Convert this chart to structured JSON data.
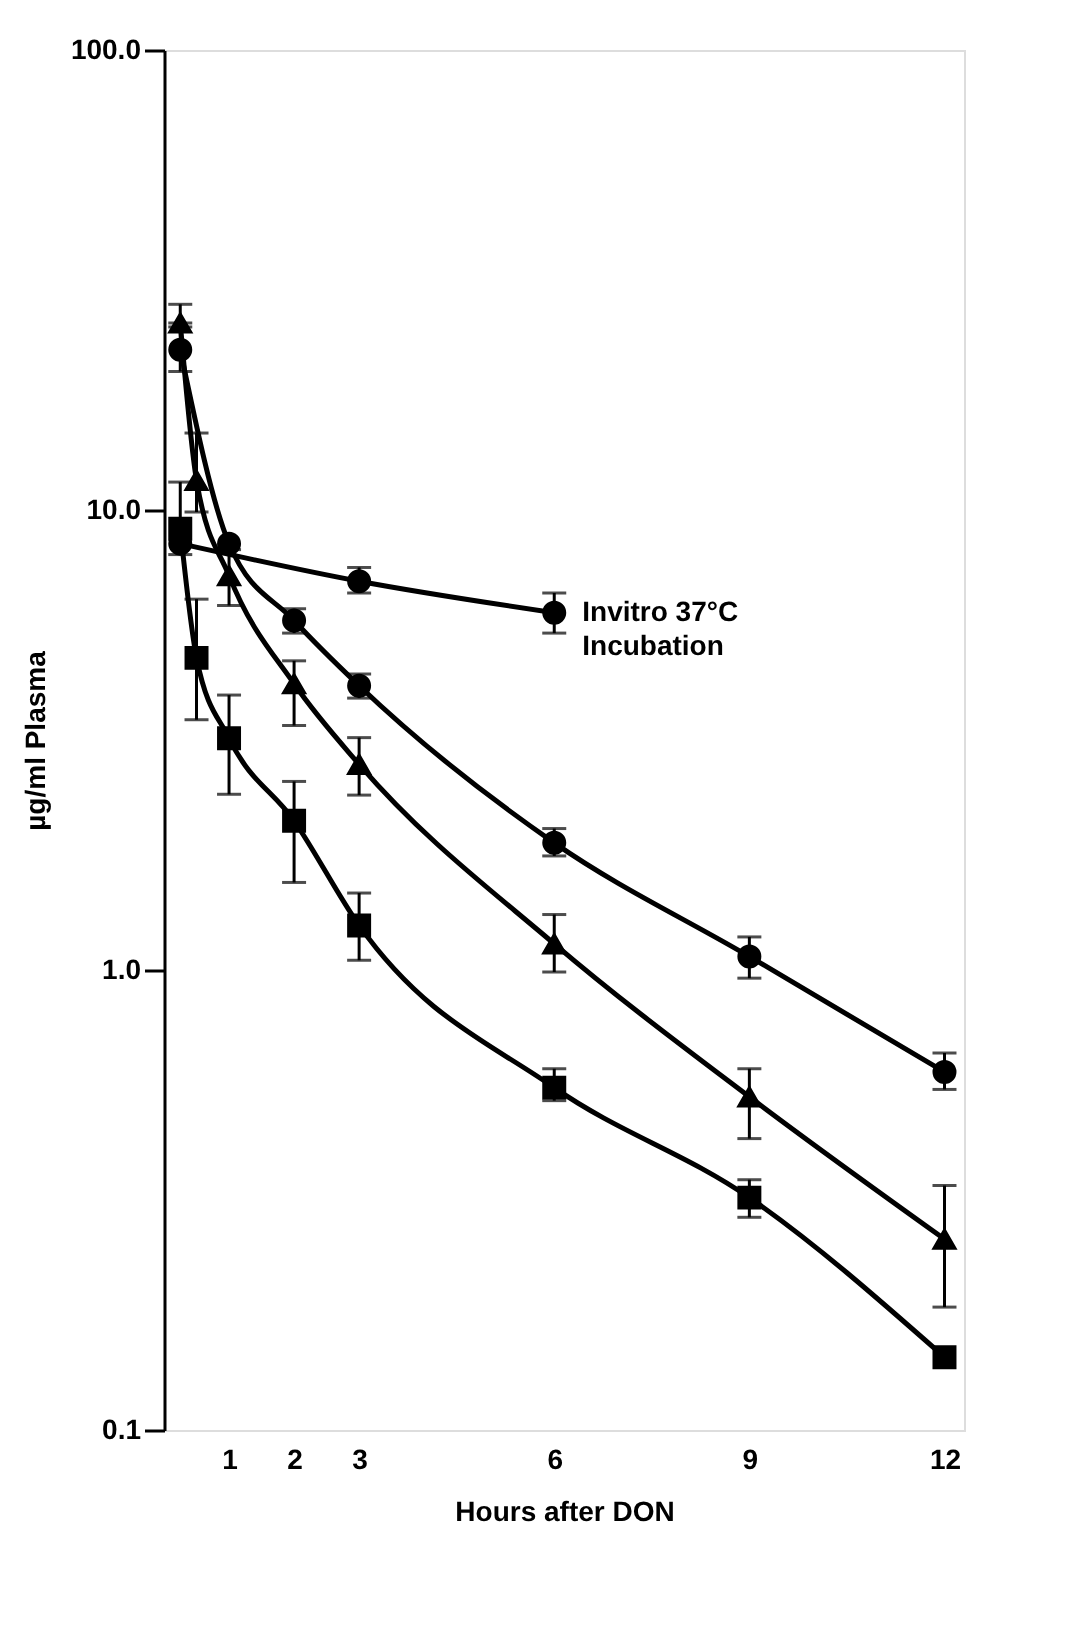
{
  "chart_data": {
    "type": "line",
    "xlabel": "Hours after DON",
    "ylabel": "µg/ml Plasma",
    "log": true,
    "xlim": [
      0,
      12.3
    ],
    "xticks": [
      1,
      2,
      3,
      6,
      9,
      12
    ],
    "ylim": [
      0.1,
      100
    ],
    "yticks": [
      {
        "value": 0.1,
        "label": "0.1"
      },
      {
        "value": 1,
        "label": "1.0"
      },
      {
        "value": 10,
        "label": "10.0"
      },
      {
        "value": 100,
        "label": "100.0"
      }
    ],
    "grid": false,
    "line_style": "solid",
    "series": [
      {
        "marker": "circle",
        "color": "#000000",
        "x": [
          0.25,
          1,
          2,
          3,
          6,
          9,
          12
        ],
        "values": [
          22.3,
          8.45,
          5.75,
          4.15,
          1.89,
          1.07,
          0.6
        ],
        "errors": [
          [
            20,
            25
          ],
          null,
          [
            5.4,
            6.1
          ],
          [
            3.9,
            4.4
          ],
          [
            1.77,
            2.03
          ],
          [
            0.96,
            1.18
          ],
          [
            0.55,
            0.66
          ]
        ]
      },
      {
        "marker": "triangle",
        "color": "#000000",
        "x": [
          0.25,
          0.5,
          1,
          2,
          3,
          6,
          9,
          12
        ],
        "values": [
          25.5,
          11.6,
          7.2,
          4.19,
          2.8,
          1.14,
          0.53,
          0.26
        ],
        "errors": [
          [
            25.5,
            28
          ],
          [
            9.9,
            14.7
          ],
          [
            6.2,
            8.2
          ],
          [
            3.4,
            4.7
          ],
          [
            2.4,
            3.2
          ],
          [
            0.99,
            1.32
          ],
          [
            0.43,
            0.61
          ],
          [
            0.185,
            0.34
          ]
        ]
      },
      {
        "marker": "square",
        "color": "#000000",
        "x": [
          0.25,
          0.5,
          1,
          2,
          3,
          6,
          9,
          12
        ],
        "values": [
          9.1,
          4.77,
          3.19,
          2.11,
          1.25,
          0.555,
          0.32,
          0.144
        ],
        "errors": [
          [
            8,
            11.5
          ],
          [
            3.5,
            6.4
          ],
          [
            2.41,
            3.96
          ],
          [
            1.55,
            2.57
          ],
          [
            1.05,
            1.47
          ],
          [
            0.52,
            0.61
          ],
          [
            0.29,
            0.35
          ],
          null
        ]
      },
      {
        "marker": "circle",
        "name": "Invitro 37°C\nIncubation",
        "color": "#000000",
        "x": [
          0.25,
          3,
          6
        ],
        "values": [
          8.45,
          7.0,
          5.98
        ],
        "errors": [
          null,
          [
            6.6,
            7.5
          ],
          [
            5.4,
            6.6
          ]
        ]
      }
    ]
  }
}
